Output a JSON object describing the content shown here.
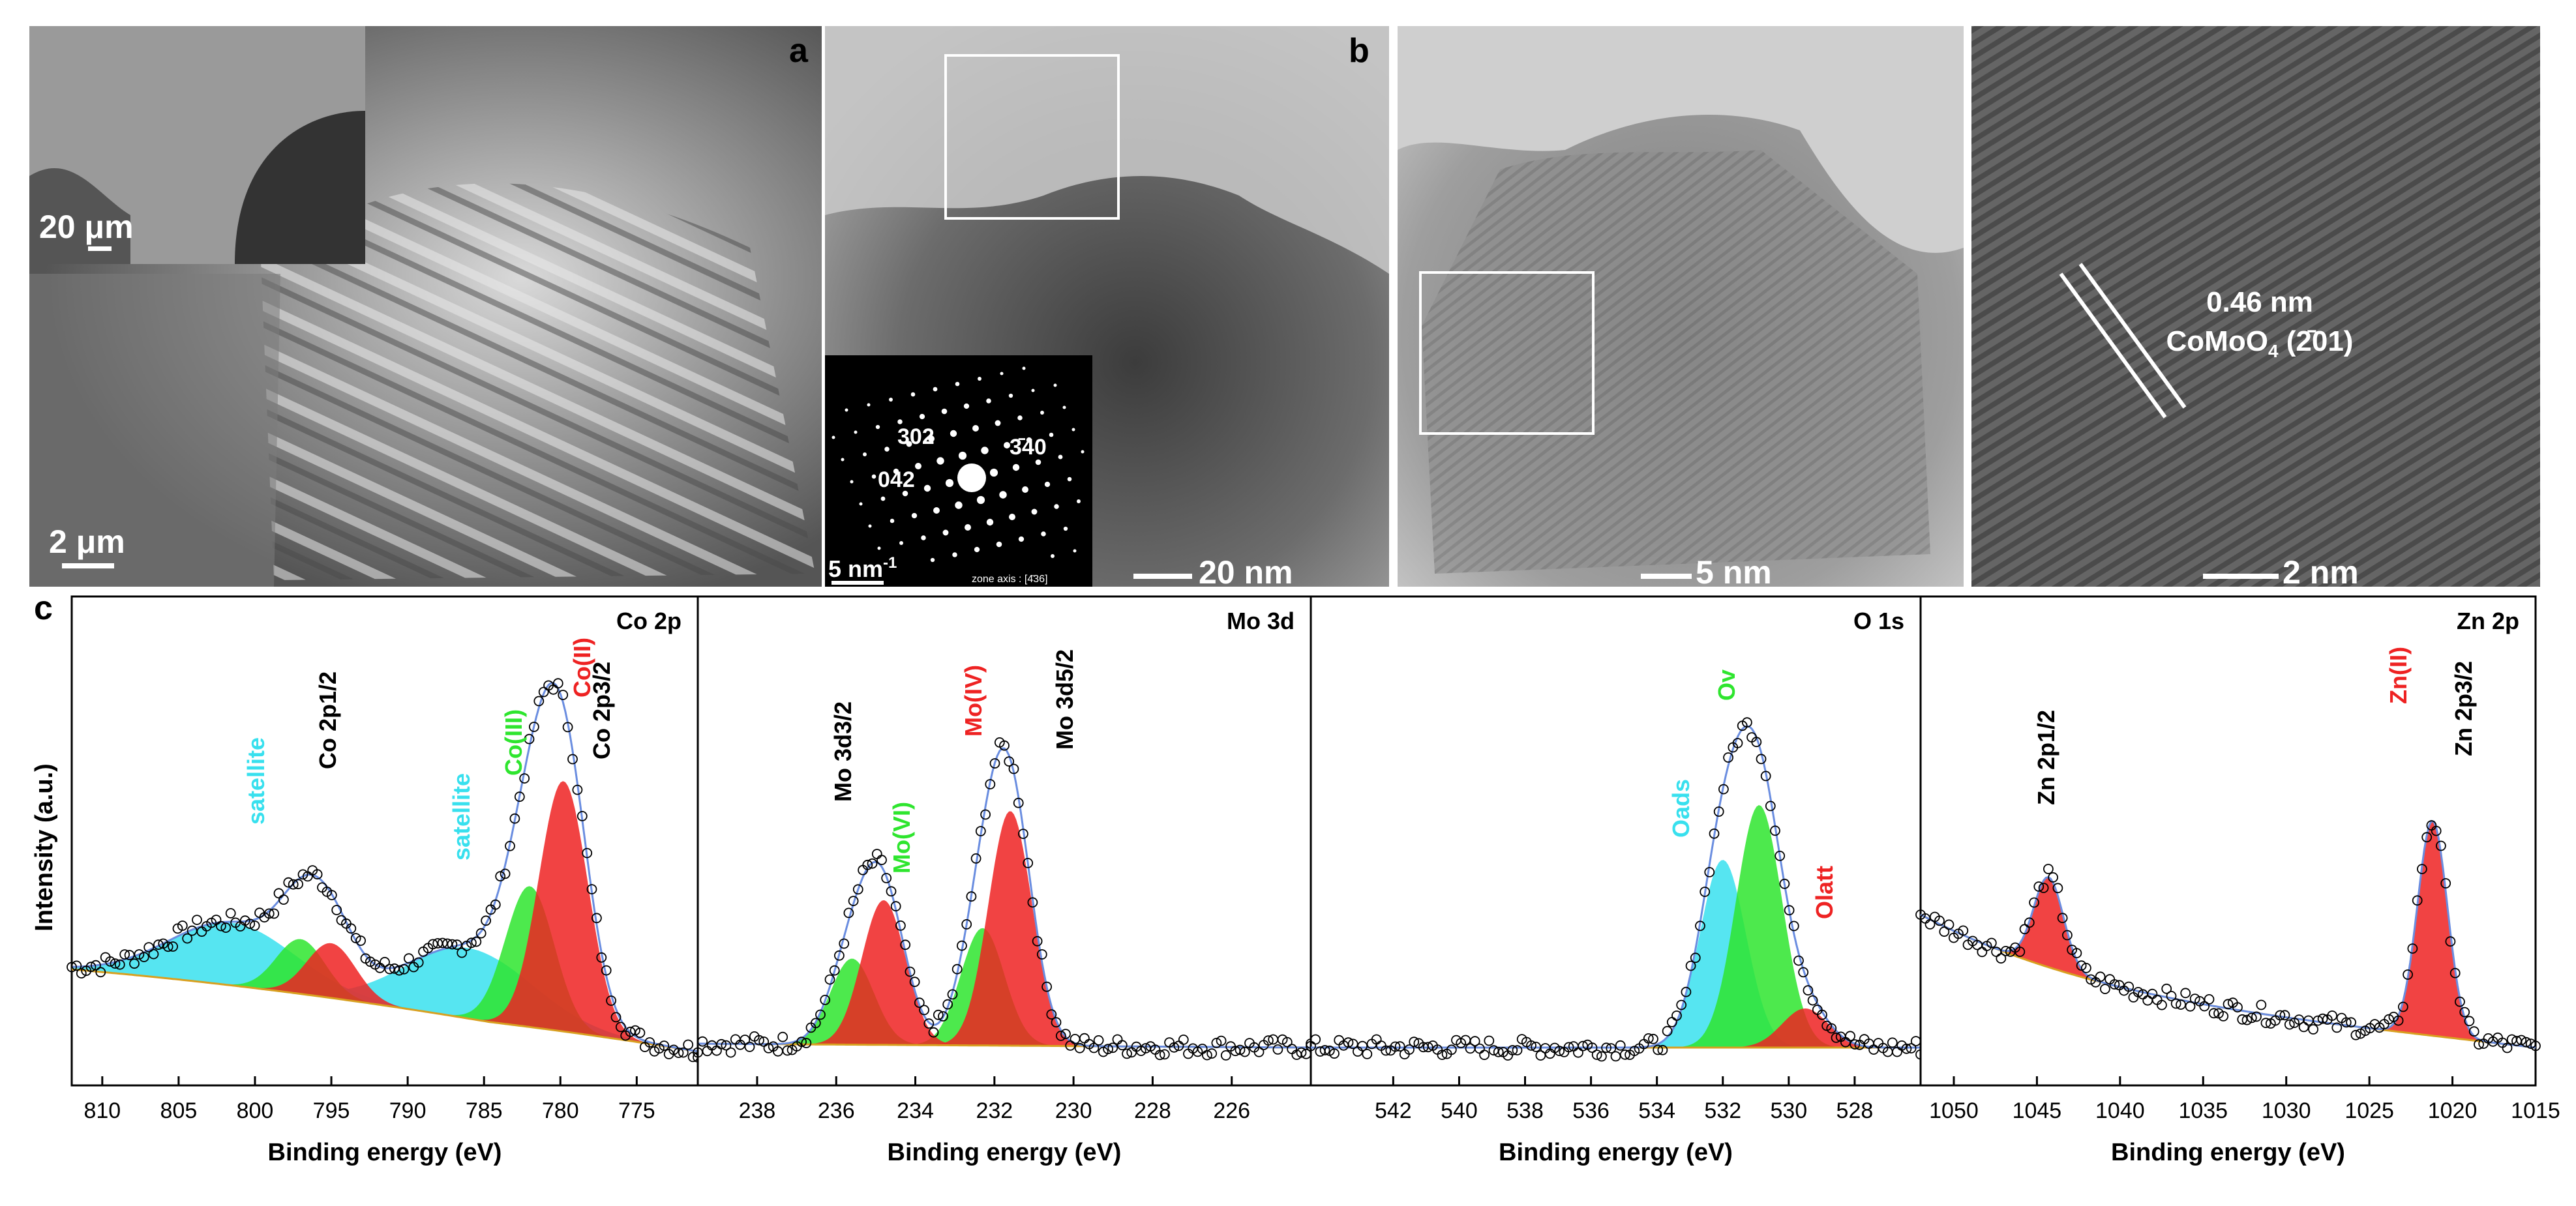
{
  "panels": {
    "a": {
      "letter": "a",
      "inset_scale": "20 μm",
      "main_scale": "2 μm"
    },
    "b": {
      "letter": "b",
      "saed_labels": [
        "302",
        "3̄40",
        "042"
      ],
      "saed_scale": "5 nm",
      "saed_scale_sup": "-1",
      "zone_axis": "zone axis : [4̄36]",
      "tem1_scale": "20 nm",
      "tem2_scale": "5 nm",
      "tem3_scale": "2 nm",
      "lattice_spacing": "0.46 nm",
      "lattice_phase_prefix": "CoMoO",
      "lattice_phase_sub": "4",
      "lattice_phase_plane": " (2̄01)"
    },
    "c": {
      "letter": "c"
    }
  },
  "colors": {
    "cyan": "#38e0ee",
    "green": "#2ee52e",
    "red": "#ee2222",
    "fit": "#6a8de0"
  },
  "chart_data": [
    {
      "type": "line",
      "title": "Co 2p",
      "ylabel": "Intensity (a.u.)",
      "xlabel": "Binding energy (eV)",
      "xlim": [
        812,
        771
      ],
      "xticks": [
        810,
        805,
        800,
        795,
        790,
        785,
        780,
        775
      ],
      "peaks": [
        {
          "label": "satellite",
          "color": "cyan",
          "center": 801.5,
          "height": 0.16
        },
        {
          "label": "satellite",
          "color": "cyan",
          "center": 786.0,
          "height": 0.18
        },
        {
          "label": "Co(III)",
          "color": "green",
          "center": 797.0,
          "height": 0.14
        },
        {
          "label": "Co(III)",
          "color": "green",
          "center": 782.0,
          "height": 0.36
        },
        {
          "label": "Co(II)",
          "color": "red",
          "center": 795.0,
          "height": 0.14
        },
        {
          "label": "Co(II)",
          "color": "red",
          "center": 779.8,
          "height": 0.64
        }
      ],
      "labels": [
        "satellite",
        "Co 2p1/2",
        "satellite",
        "Co(III)",
        "Co(II)",
        "Co 2p3/2"
      ]
    },
    {
      "type": "line",
      "title": "Mo 3d",
      "xlabel": "Binding energy (eV)",
      "xlim": [
        239.5,
        224
      ],
      "xticks": [
        238,
        236,
        234,
        232,
        230,
        228,
        226
      ],
      "peaks": [
        {
          "label": "Mo(VI)",
          "color": "green",
          "center": 235.6,
          "height": 0.22
        },
        {
          "label": "Mo(VI)",
          "color": "green",
          "center": 232.3,
          "height": 0.3
        },
        {
          "label": "Mo(IV)",
          "color": "red",
          "center": 234.8,
          "height": 0.37
        },
        {
          "label": "Mo(IV)",
          "color": "red",
          "center": 231.6,
          "height": 0.6
        }
      ],
      "labels": [
        "Mo 3d3/2",
        "Mo(VI)",
        "Mo(IV)",
        "Mo 3d5/2"
      ]
    },
    {
      "type": "line",
      "title": "O 1s",
      "xlabel": "Binding energy (eV)",
      "xlim": [
        544.5,
        526
      ],
      "xticks": [
        542,
        540,
        538,
        536,
        534,
        532,
        530,
        528
      ],
      "peaks": [
        {
          "label": "O_ads",
          "color": "cyan",
          "center": 532.0,
          "height": 0.48
        },
        {
          "label": "O_v",
          "color": "green",
          "center": 530.9,
          "height": 0.62
        },
        {
          "label": "O_latt",
          "color": "red",
          "center": 529.5,
          "height": 0.1
        }
      ],
      "labels": [
        "Oads",
        "Ov",
        "Olatt"
      ]
    },
    {
      "type": "line",
      "title": "Zn 2p",
      "xlabel": "Binding energy (eV)",
      "xlim": [
        1052,
        1015
      ],
      "xticks": [
        1050,
        1045,
        1040,
        1035,
        1030,
        1025,
        1020,
        1015
      ],
      "peaks": [
        {
          "label": "Zn 2p1/2",
          "color": "red",
          "center": 1044.3,
          "height": 0.23
        },
        {
          "label": "Zn(II)",
          "color": "red",
          "center": 1021.2,
          "height": 0.55
        }
      ],
      "labels": [
        "Zn 2p1/2",
        "Zn(II)",
        "Zn 2p3/2"
      ]
    }
  ]
}
